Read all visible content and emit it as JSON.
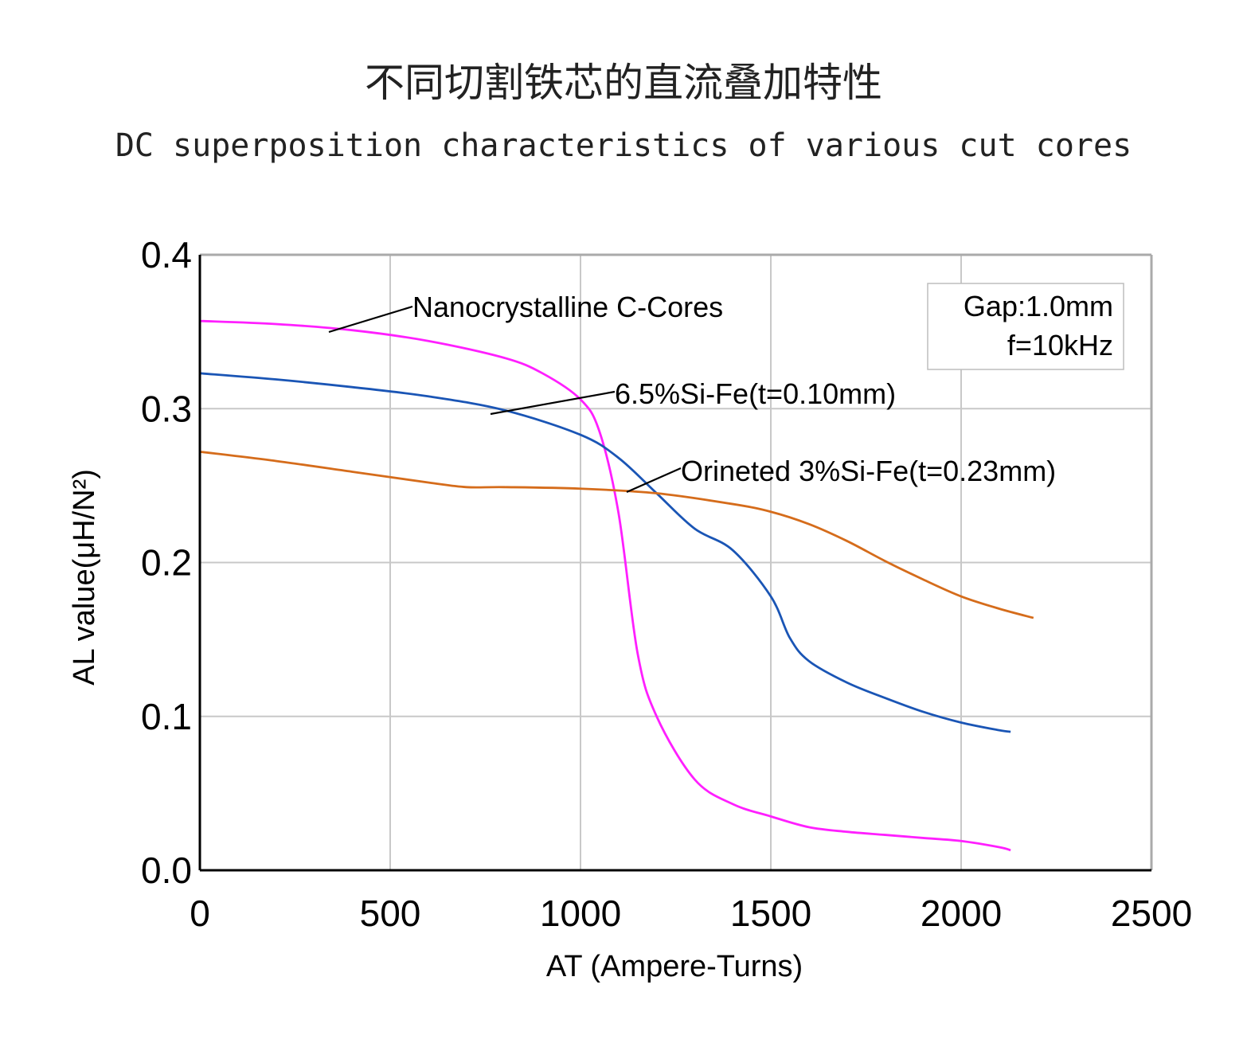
{
  "chart_data": {
    "type": "line",
    "title": "不同切割铁芯的直流叠加特性",
    "subtitle": "DC superposition characteristics of various cut cores",
    "xlabel": "AT (Ampere-Turns)",
    "ylabel": "AL value(μH/N²)",
    "xlim": [
      0,
      2500
    ],
    "ylim": [
      0.0,
      0.4
    ],
    "xticks": [
      "0",
      "500",
      "1000",
      "1500",
      "2000",
      "2500"
    ],
    "yticks": [
      "0.0",
      "0.1",
      "0.2",
      "0.3",
      "0.4"
    ],
    "grid": true,
    "info_box": [
      "Gap:1.0mm",
      "f=10kHz"
    ],
    "series": [
      {
        "name": "Nanocrystalline C-Cores",
        "color": "#ff1fff",
        "x": [
          0,
          200,
          400,
          600,
          800,
          900,
          1000,
          1050,
          1100,
          1150,
          1200,
          1300,
          1400,
          1500,
          1600,
          1700,
          1800,
          1900,
          2000,
          2100,
          2130
        ],
        "y": [
          0.357,
          0.355,
          0.351,
          0.344,
          0.333,
          0.323,
          0.306,
          0.285,
          0.232,
          0.141,
          0.1,
          0.059,
          0.043,
          0.035,
          0.028,
          0.025,
          0.023,
          0.021,
          0.019,
          0.015,
          0.013
        ]
      },
      {
        "name": "6.5%Si-Fe(t=0.10mm)",
        "color": "#1a55b5",
        "x": [
          0,
          200,
          400,
          600,
          800,
          1000,
          1100,
          1200,
          1300,
          1400,
          1500,
          1550,
          1600,
          1700,
          1800,
          1900,
          2000,
          2100,
          2130
        ],
        "y": [
          0.323,
          0.319,
          0.314,
          0.308,
          0.299,
          0.283,
          0.268,
          0.245,
          0.222,
          0.208,
          0.178,
          0.151,
          0.136,
          0.122,
          0.112,
          0.103,
          0.096,
          0.091,
          0.09
        ]
      },
      {
        "name": "Orineted 3%Si-Fe(t=0.23mm)",
        "color": "#d56c1b",
        "x": [
          0,
          200,
          400,
          600,
          700,
          800,
          1000,
          1200,
          1400,
          1500,
          1600,
          1700,
          1800,
          1900,
          2000,
          2100,
          2190
        ],
        "y": [
          0.272,
          0.266,
          0.259,
          0.252,
          0.249,
          0.249,
          0.248,
          0.245,
          0.238,
          0.233,
          0.225,
          0.214,
          0.201,
          0.189,
          0.178,
          0.17,
          0.164
        ]
      }
    ]
  }
}
